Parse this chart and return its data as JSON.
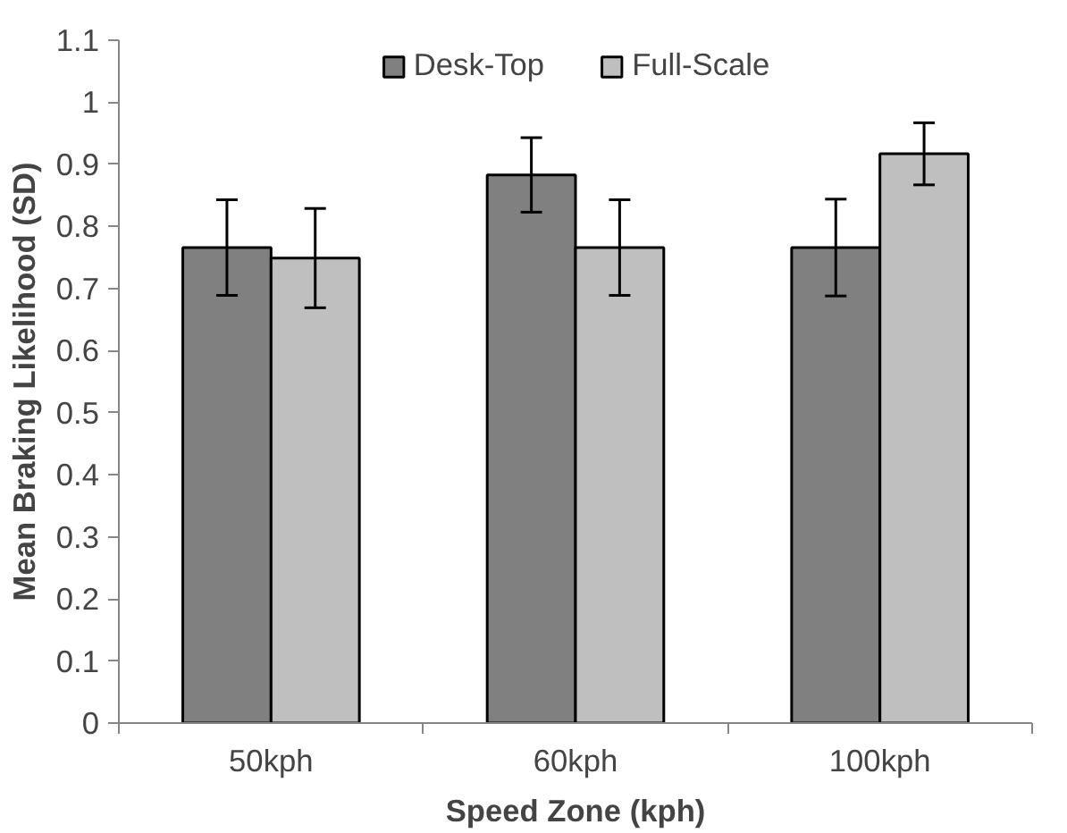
{
  "chart_data": {
    "type": "bar",
    "xlabel": "Speed Zone (kph)",
    "ylabel": "Mean Braking Likelihood (SD)",
    "categories": [
      "50kph",
      "60kph",
      "100kph"
    ],
    "series": [
      {
        "name": "Desk-Top",
        "color": "#808080",
        "values": [
          0.766,
          0.883,
          0.766
        ],
        "errors": [
          0.077,
          0.06,
          0.078
        ]
      },
      {
        "name": "Full-Scale",
        "color": "#bfbfbf",
        "values": [
          0.749,
          0.766,
          0.917
        ],
        "errors": [
          0.08,
          0.077,
          0.05
        ]
      }
    ],
    "ylim": [
      0,
      1.1
    ],
    "yticks": [
      0,
      0.1,
      0.2,
      0.3,
      0.4,
      0.5,
      0.6,
      0.7,
      0.8,
      0.9,
      1,
      1.1
    ],
    "grid": false,
    "legend": "top"
  }
}
